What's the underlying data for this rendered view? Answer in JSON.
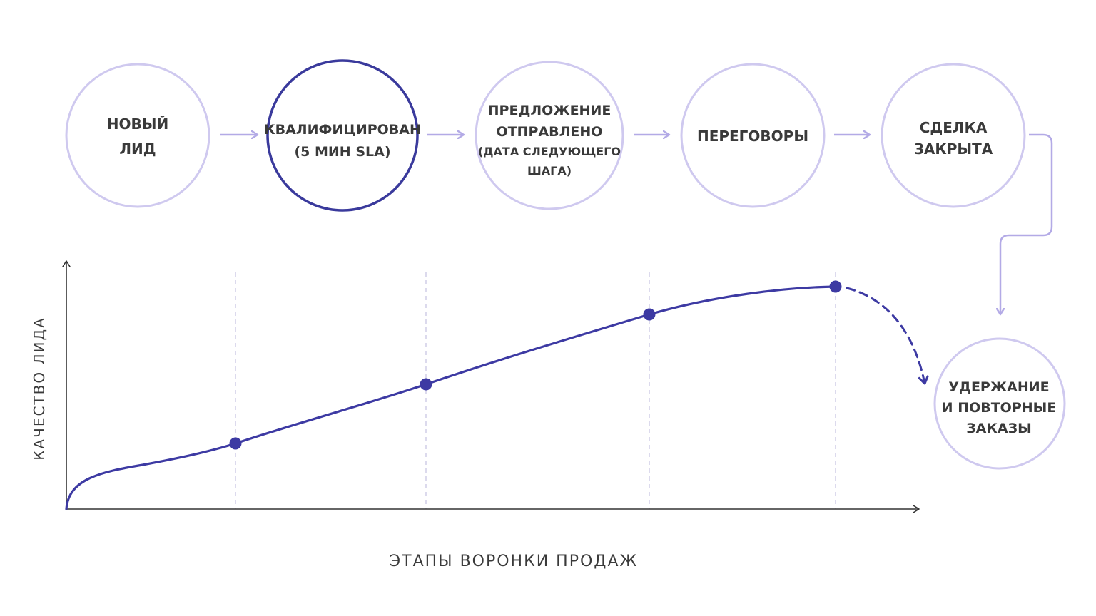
{
  "stages": [
    {
      "lines": [
        "НОВЫЙ",
        "ЛИД"
      ]
    },
    {
      "lines": [
        "КВАЛИФИЦИРОВАН",
        "(5 МИН SLA)"
      ]
    },
    {
      "lines": [
        "ПРЕДЛОЖЕНИЕ",
        "ОТПРАВЛЕНО"
      ],
      "sub_lines": [
        "(ДАТА СЛЕДУЮЩЕГО",
        "ШАГА)"
      ]
    },
    {
      "lines": [
        "ПЕРЕГОВОРЫ"
      ]
    },
    {
      "lines": [
        "СДЕЛКА",
        "ЗАКРЫТА"
      ]
    }
  ],
  "retention": {
    "lines": [
      "УДЕРЖАНИЕ",
      "И ПОВТОРНЫЕ",
      "ЗАКАЗЫ"
    ]
  },
  "chart": {
    "y_axis_title": "КАЧЕСТВО ЛИДА",
    "x_axis_title": "ЭТАПЫ ВОРОНКИ ПРОДАЖ"
  },
  "colors": {
    "circle_light": "#cfc9ef",
    "circle_highlight": "#3a3a9c",
    "arrow": "#b3aae6",
    "curve": "#3d3aa3",
    "guide": "#c9c6e3",
    "axis": "#333333",
    "text": "#3a3a3a"
  }
}
